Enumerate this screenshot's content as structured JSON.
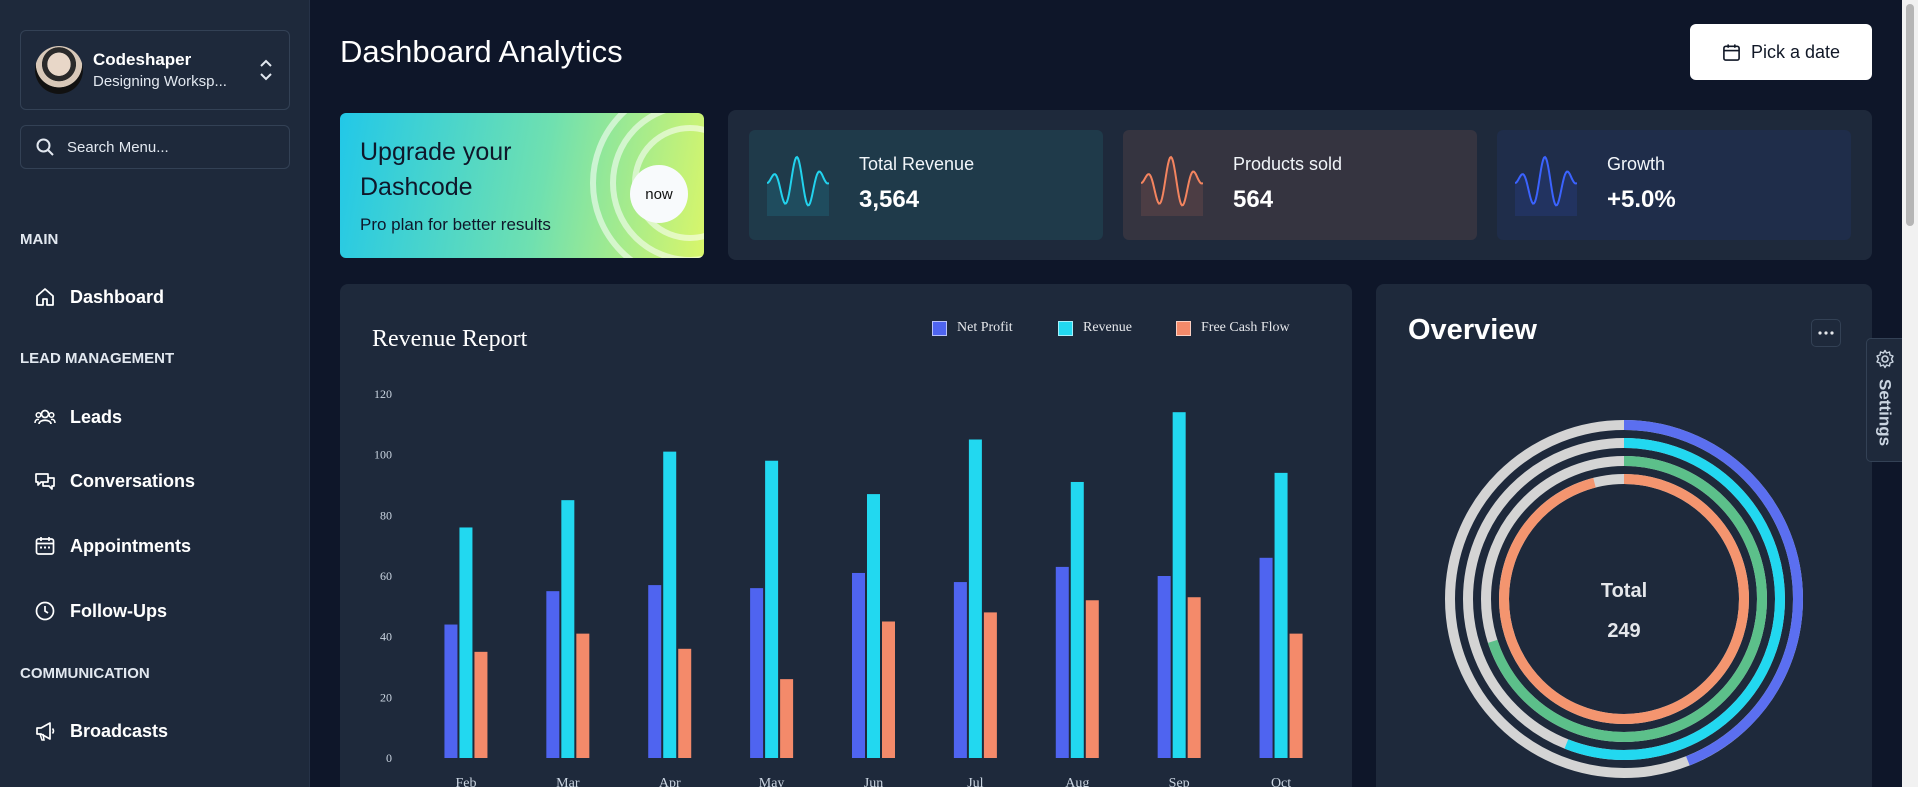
{
  "sidebar": {
    "profile": {
      "name": "Codeshaper",
      "workspace": "Designing Worksp..."
    },
    "search": {
      "placeholder": "Search Menu..."
    },
    "sections": {
      "main": "MAIN",
      "lead_management": "LEAD MANAGEMENT",
      "communication": "COMMUNICATION"
    },
    "items": [
      {
        "label": "Dashboard",
        "icon": "home-icon"
      },
      {
        "label": "Leads",
        "icon": "users-icon"
      },
      {
        "label": "Conversations",
        "icon": "chat-icon"
      },
      {
        "label": "Appointments",
        "icon": "calendar-icon"
      },
      {
        "label": "Follow-Ups",
        "icon": "clock-icon"
      },
      {
        "label": "Broadcasts",
        "icon": "megaphone-icon"
      }
    ]
  },
  "header": {
    "title": "Dashboard Analytics",
    "date_button": "Pick a date"
  },
  "upgrade": {
    "title": "Upgrade your Dashcode",
    "subtitle": "Pro plan for better results",
    "button": "now"
  },
  "stats": [
    {
      "label": "Total Revenue",
      "value": "3,564",
      "color": "#22d3ee",
      "bg": "#1f3a4a"
    },
    {
      "label": "Products sold",
      "value": "564",
      "color": "#f4845f",
      "bg": "#353440"
    },
    {
      "label": "Growth",
      "value": "+5.0%",
      "color": "#3b63ff",
      "bg": "#1f2d4a"
    }
  ],
  "chart_data": {
    "type": "bar",
    "title": "Revenue Report",
    "categories": [
      "Feb",
      "Mar",
      "Apr",
      "May",
      "Jun",
      "Jul",
      "Aug",
      "Sep",
      "Oct"
    ],
    "series": [
      {
        "name": "Net Profit",
        "color": "#4f64f0",
        "values": [
          44,
          55,
          57,
          56,
          61,
          58,
          63,
          60,
          66
        ]
      },
      {
        "name": "Revenue",
        "color": "#22d8f0",
        "values": [
          76,
          85,
          101,
          98,
          87,
          105,
          91,
          114,
          94
        ]
      },
      {
        "name": "Free Cash Flow",
        "color": "#f48a6a",
        "values": [
          35,
          41,
          36,
          26,
          45,
          48,
          52,
          53,
          41
        ]
      }
    ],
    "yticks": [
      0,
      20,
      40,
      60,
      80,
      100,
      120
    ],
    "ylim": [
      0,
      120
    ],
    "legend": "top-right",
    "grid": false
  },
  "overview": {
    "title": "Overview",
    "total_label": "Total",
    "total_value": "249",
    "rings": [
      {
        "color": "#5b6ff0",
        "fraction": 0.44
      },
      {
        "color": "#22d8f0",
        "fraction": 0.56
      },
      {
        "color": "#5cc08a",
        "fraction": 0.7
      },
      {
        "color": "#f4956f",
        "fraction": 0.96
      }
    ],
    "track_color": "#d4d4d4"
  },
  "settings_tab": {
    "label": "Settings"
  }
}
